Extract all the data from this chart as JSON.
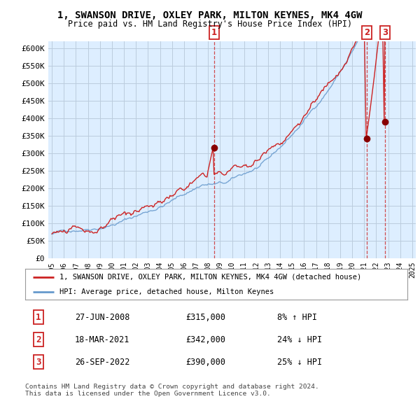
{
  "title": "1, SWANSON DRIVE, OXLEY PARK, MILTON KEYNES, MK4 4GW",
  "subtitle": "Price paid vs. HM Land Registry's House Price Index (HPI)",
  "ylabel_ticks": [
    "£0",
    "£50K",
    "£100K",
    "£150K",
    "£200K",
    "£250K",
    "£300K",
    "£350K",
    "£400K",
    "£450K",
    "£500K",
    "£550K",
    "£600K"
  ],
  "ytick_values": [
    0,
    50000,
    100000,
    150000,
    200000,
    250000,
    300000,
    350000,
    400000,
    450000,
    500000,
    550000,
    600000
  ],
  "xlim_start": 1994.7,
  "xlim_end": 2025.3,
  "ylim_min": 0,
  "ylim_max": 620000,
  "legend_label_red": "1, SWANSON DRIVE, OXLEY PARK, MILTON KEYNES, MK4 4GW (detached house)",
  "legend_label_blue": "HPI: Average price, detached house, Milton Keynes",
  "sale_points": [
    {
      "num": "1",
      "date_x": 2008.49,
      "price": 315000
    },
    {
      "num": "2",
      "date_x": 2021.21,
      "price": 342000
    },
    {
      "num": "3",
      "date_x": 2022.74,
      "price": 390000
    }
  ],
  "table_rows": [
    {
      "num": "1",
      "date": "27-JUN-2008",
      "price": "£315,000",
      "hpi": "8% ↑ HPI"
    },
    {
      "num": "2",
      "date": "18-MAR-2021",
      "price": "£342,000",
      "hpi": "24% ↓ HPI"
    },
    {
      "num": "3",
      "date": "26-SEP-2022",
      "price": "£390,000",
      "hpi": "25% ↓ HPI"
    }
  ],
  "footer": "Contains HM Land Registry data © Crown copyright and database right 2024.\nThis data is licensed under the Open Government Licence v3.0.",
  "background_color": "#ffffff",
  "chart_bg_color": "#ddeeff",
  "grid_color": "#bbccdd",
  "red_color": "#cc2222",
  "blue_color": "#6699cc",
  "title_fontsize": 10,
  "subtitle_fontsize": 8.5
}
